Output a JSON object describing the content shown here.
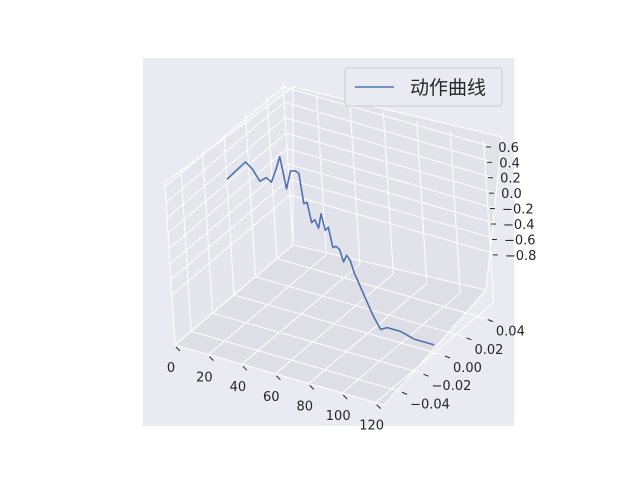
{
  "chart_data": {
    "type": "line",
    "projection": "3d",
    "legend": {
      "entries": [
        "动作曲线"
      ],
      "placement": "top-right"
    },
    "series": [
      {
        "name": "动作曲线",
        "color": "#4c72b0",
        "x": [
          0,
          4,
          8,
          12,
          16,
          20,
          24,
          27,
          30,
          33,
          36,
          39,
          42,
          44,
          46,
          48,
          50,
          52,
          54,
          56,
          58,
          60,
          62,
          64,
          66,
          68,
          70,
          72,
          74,
          76,
          80,
          84,
          88,
          92,
          100,
          108,
          120
        ],
        "y": [
          0,
          0,
          0,
          0,
          0,
          0,
          0,
          0,
          0,
          0,
          0,
          0,
          0,
          0,
          0,
          0,
          0,
          0,
          0,
          0,
          0,
          0,
          0,
          0,
          0,
          0,
          0,
          0,
          0,
          0,
          0,
          0,
          0,
          0,
          0,
          0,
          0
        ],
        "z": [
          0.05,
          0.15,
          0.25,
          0.35,
          0.28,
          0.15,
          0.22,
          0.18,
          0.35,
          0.55,
          0.15,
          0.4,
          0.42,
          0.4,
          0.02,
          0.05,
          -0.2,
          -0.15,
          -0.25,
          -0.05,
          -0.25,
          -0.2,
          -0.45,
          -0.42,
          -0.45,
          -0.6,
          -0.5,
          -0.55,
          -0.7,
          -0.8,
          -1.0,
          -1.2,
          -1.35,
          -1.3,
          -1.3,
          -1.35,
          -1.35
        ]
      }
    ],
    "x_ticks": [
      "0",
      "20",
      "40",
      "60",
      "80",
      "100",
      "120"
    ],
    "y_ticks": [
      "0.04",
      "0.02",
      "0.00",
      "−0.02",
      "−0.04"
    ],
    "z_ticks": [
      "0.6",
      "0.4",
      "0.2",
      "0.0",
      "−0.2",
      "−0.4",
      "−0.6",
      "−0.8"
    ],
    "xlim": [
      0,
      125
    ],
    "ylim": [
      -0.055,
      0.055
    ],
    "zlim": [
      -1.45,
      0.65
    ],
    "grid": true,
    "background": "#eaeaf2"
  }
}
